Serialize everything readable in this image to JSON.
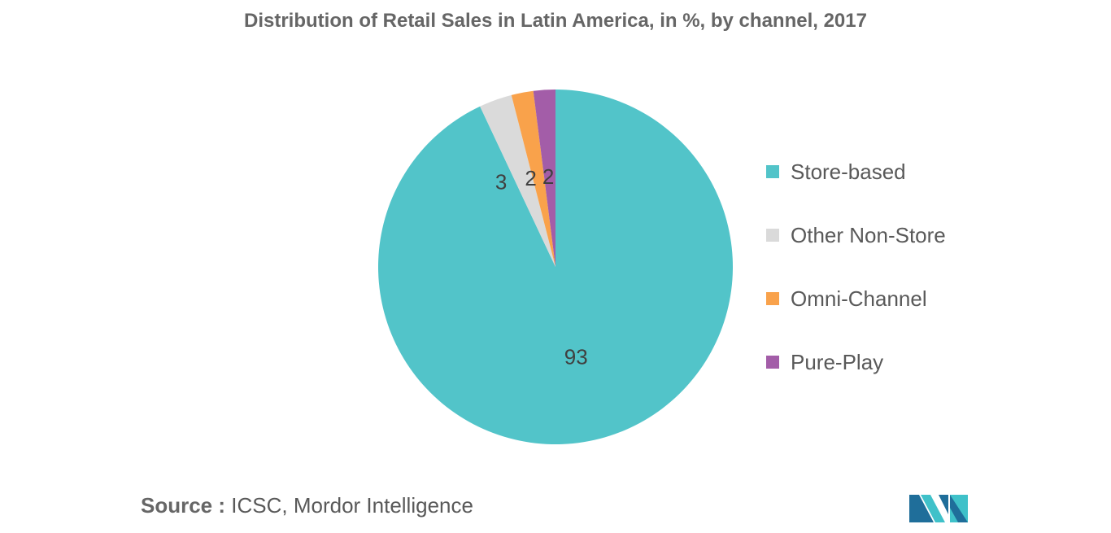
{
  "chart_data": {
    "type": "pie",
    "title": "Distribution of Retail Sales in Latin America, in %, by channel, 2017",
    "categories": [
      "Store-based",
      "Other Non-Store",
      "Omni-Channel",
      "Pure-Play"
    ],
    "values": [
      93,
      3,
      2,
      2
    ],
    "colors": [
      "#52C4C9",
      "#DADADA",
      "#F9A24B",
      "#A35DA8"
    ],
    "legend_position": "right"
  },
  "legend": {
    "items": [
      {
        "label": "Store-based",
        "color": "#52C4C9"
      },
      {
        "label": "Other Non-Store",
        "color": "#DADADA"
      },
      {
        "label": "Omni-Channel",
        "color": "#F9A24B"
      },
      {
        "label": "Pure-Play",
        "color": "#A35DA8"
      }
    ]
  },
  "source": {
    "label": "Source :",
    "text": "ICSC, Mordor Intelligence"
  },
  "logo": {
    "icon": "mordor-intelligence-logo-icon",
    "colors": [
      "#1F6E9A",
      "#3FC1C9"
    ]
  }
}
